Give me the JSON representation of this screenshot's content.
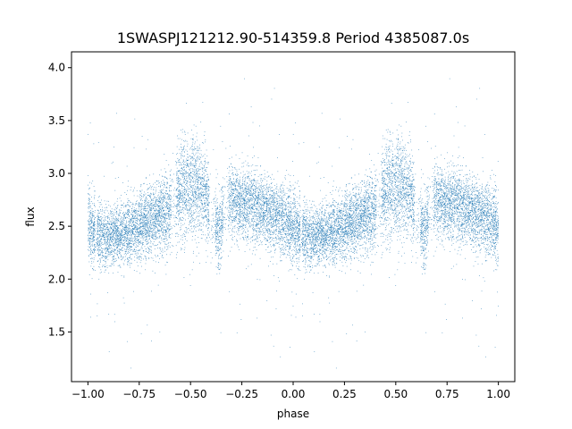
{
  "chart_data": {
    "type": "scatter",
    "title": "1SWASPJ121212.90-514359.8 Period 4385087.0s",
    "xlabel": "phase",
    "ylabel": "flux",
    "xlim": [
      -1.08,
      1.08
    ],
    "ylim": [
      1.03,
      4.15
    ],
    "grid": false,
    "legend": "none",
    "x_ticks": [
      -1.0,
      -0.75,
      -0.5,
      -0.25,
      0.0,
      0.25,
      0.5,
      0.75,
      1.0
    ],
    "x_tick_labels": [
      "−1.00",
      "−0.75",
      "−0.50",
      "−0.25",
      "0.00",
      "0.25",
      "0.50",
      "0.75",
      "1.00"
    ],
    "y_ticks": [
      1.5,
      2.0,
      2.5,
      3.0,
      3.5,
      4.0
    ],
    "y_tick_labels": [
      "1.5",
      "2.0",
      "2.5",
      "3.0",
      "3.5",
      "4.0"
    ],
    "point_color": "#1f77b4",
    "profile": {
      "description": "approximate mean flux vs phase (one period, repeated for phase -1..0 and 0..1)",
      "phase": [
        0.0,
        0.05,
        0.1,
        0.15,
        0.2,
        0.25,
        0.3,
        0.35,
        0.38,
        0.4,
        0.42,
        0.44,
        0.46,
        0.48,
        0.5,
        0.53,
        0.56,
        0.58,
        0.6,
        0.62,
        0.64,
        0.66,
        0.68,
        0.7,
        0.75,
        0.8,
        0.85,
        0.9,
        0.95,
        1.0
      ],
      "flux": [
        2.5,
        2.42,
        2.4,
        2.42,
        2.45,
        2.5,
        2.55,
        2.6,
        2.62,
        2.66,
        2.72,
        2.8,
        2.85,
        2.88,
        2.88,
        2.86,
        2.82,
        2.78,
        2.6,
        2.58,
        2.4,
        2.62,
        2.74,
        2.75,
        2.72,
        2.7,
        2.66,
        2.62,
        2.56,
        2.5
      ],
      "scatter": [
        0.18,
        0.15,
        0.14,
        0.14,
        0.15,
        0.15,
        0.16,
        0.17,
        0.18,
        0.18,
        0.2,
        0.22,
        0.24,
        0.24,
        0.24,
        0.24,
        0.22,
        0.2,
        0.18,
        0.18,
        0.17,
        0.17,
        0.17,
        0.17,
        0.17,
        0.17,
        0.16,
        0.16,
        0.17,
        0.18
      ]
    },
    "gaps": [
      [
        0.035,
        0.045
      ],
      [
        0.405,
        0.43
      ],
      [
        0.59,
        0.62
      ],
      [
        0.66,
        0.685
      ]
    ],
    "point_count": 15000
  }
}
